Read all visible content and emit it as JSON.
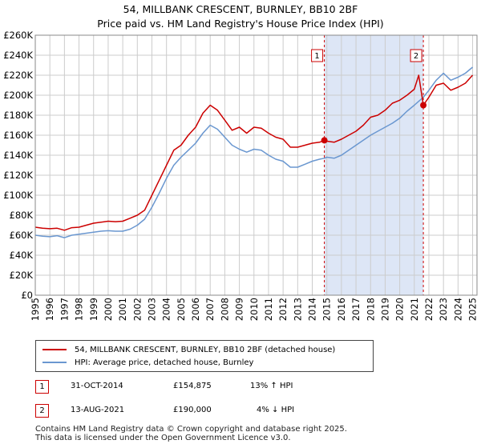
{
  "title": "54, MILLBANK CRESCENT, BURNLEY, BB10 2BF",
  "subtitle": "Price paid vs. HM Land Registry's House Price Index (HPI)",
  "colors": {
    "red": "#cc0000",
    "blue": "#6a97d0",
    "shade": "#dde6f6",
    "grid": "#cccccc"
  },
  "chart_data": {
    "type": "line",
    "title": "54, MILLBANK CRESCENT, BURNLEY, BB10 2BF",
    "subtitle": "Price paid vs. HM Land Registry's House Price Index (HPI)",
    "xlim": [
      1995,
      2025.3
    ],
    "ylim": [
      0,
      260000
    ],
    "ytick_labels": [
      "£0",
      "£20K",
      "£40K",
      "£60K",
      "£80K",
      "£100K",
      "£120K",
      "£140K",
      "£160K",
      "£180K",
      "£200K",
      "£220K",
      "£240K",
      "£260K"
    ],
    "xtick_labels": [
      "1995",
      "1996",
      "1997",
      "1998",
      "1999",
      "2000",
      "2001",
      "2002",
      "2003",
      "2004",
      "2005",
      "2006",
      "2007",
      "2008",
      "2009",
      "2010",
      "2011",
      "2012",
      "2013",
      "2014",
      "2015",
      "2016",
      "2017",
      "2018",
      "2019",
      "2020",
      "2021",
      "2022",
      "2023",
      "2024",
      "2025"
    ],
    "grid": true,
    "shaded_range": [
      2014.83,
      2021.62
    ],
    "series": [
      {
        "name": "54, MILLBANK CRESCENT, BURNLEY, BB10 2BF (detached house)",
        "color": "#cc0000",
        "points": [
          [
            1995,
            68000
          ],
          [
            1995.5,
            67000
          ],
          [
            1996,
            66500
          ],
          [
            1996.5,
            67000
          ],
          [
            1997,
            65000
          ],
          [
            1997.5,
            67500
          ],
          [
            1998,
            68000
          ],
          [
            1998.5,
            70000
          ],
          [
            1999,
            72000
          ],
          [
            1999.5,
            73000
          ],
          [
            2000,
            74000
          ],
          [
            2000.5,
            73500
          ],
          [
            2001,
            74000
          ],
          [
            2001.5,
            77000
          ],
          [
            2002,
            80000
          ],
          [
            2002.5,
            85000
          ],
          [
            2003,
            100000
          ],
          [
            2003.5,
            115000
          ],
          [
            2004,
            130000
          ],
          [
            2004.5,
            145000
          ],
          [
            2005,
            150000
          ],
          [
            2005.5,
            160000
          ],
          [
            2006,
            168000
          ],
          [
            2006.5,
            182000
          ],
          [
            2007,
            190000
          ],
          [
            2007.5,
            185000
          ],
          [
            2008,
            175000
          ],
          [
            2008.5,
            165000
          ],
          [
            2009,
            168000
          ],
          [
            2009.5,
            162000
          ],
          [
            2010,
            168000
          ],
          [
            2010.5,
            167000
          ],
          [
            2011,
            162000
          ],
          [
            2011.5,
            158000
          ],
          [
            2012,
            156000
          ],
          [
            2012.5,
            148000
          ],
          [
            2013,
            148000
          ],
          [
            2013.5,
            150000
          ],
          [
            2014,
            152000
          ],
          [
            2014.5,
            153000
          ],
          [
            2014.83,
            154875
          ],
          [
            2015,
            154000
          ],
          [
            2015.5,
            153000
          ],
          [
            2016,
            156000
          ],
          [
            2016.5,
            160000
          ],
          [
            2017,
            164000
          ],
          [
            2017.5,
            170000
          ],
          [
            2018,
            178000
          ],
          [
            2018.5,
            180000
          ],
          [
            2019,
            185000
          ],
          [
            2019.5,
            192000
          ],
          [
            2020,
            195000
          ],
          [
            2020.5,
            200000
          ],
          [
            2021,
            206000
          ],
          [
            2021.3,
            220000
          ],
          [
            2021.62,
            190000
          ],
          [
            2022,
            198000
          ],
          [
            2022.5,
            210000
          ],
          [
            2023,
            212000
          ],
          [
            2023.5,
            205000
          ],
          [
            2024,
            208000
          ],
          [
            2024.5,
            212000
          ],
          [
            2025,
            220000
          ]
        ]
      },
      {
        "name": "HPI: Average price, detached house, Burnley",
        "color": "#6a97d0",
        "points": [
          [
            1995,
            60000
          ],
          [
            1995.5,
            59000
          ],
          [
            1996,
            58500
          ],
          [
            1996.5,
            59500
          ],
          [
            1997,
            57500
          ],
          [
            1997.5,
            60000
          ],
          [
            1998,
            61000
          ],
          [
            1998.5,
            62000
          ],
          [
            1999,
            63000
          ],
          [
            1999.5,
            64000
          ],
          [
            2000,
            64500
          ],
          [
            2000.5,
            64000
          ],
          [
            2001,
            64000
          ],
          [
            2001.5,
            66000
          ],
          [
            2002,
            70000
          ],
          [
            2002.5,
            76000
          ],
          [
            2003,
            88000
          ],
          [
            2003.5,
            102000
          ],
          [
            2004,
            117000
          ],
          [
            2004.5,
            130000
          ],
          [
            2005,
            138000
          ],
          [
            2005.5,
            145000
          ],
          [
            2006,
            152000
          ],
          [
            2006.5,
            162000
          ],
          [
            2007,
            170000
          ],
          [
            2007.5,
            166000
          ],
          [
            2008,
            158000
          ],
          [
            2008.5,
            150000
          ],
          [
            2009,
            146000
          ],
          [
            2009.5,
            143000
          ],
          [
            2010,
            146000
          ],
          [
            2010.5,
            145000
          ],
          [
            2011,
            140000
          ],
          [
            2011.5,
            136000
          ],
          [
            2012,
            134000
          ],
          [
            2012.5,
            128000
          ],
          [
            2013,
            128000
          ],
          [
            2013.5,
            131000
          ],
          [
            2014,
            134000
          ],
          [
            2014.5,
            136000
          ],
          [
            2014.83,
            137000
          ],
          [
            2015,
            138000
          ],
          [
            2015.5,
            137000
          ],
          [
            2016,
            140000
          ],
          [
            2016.5,
            145000
          ],
          [
            2017,
            150000
          ],
          [
            2017.5,
            155000
          ],
          [
            2018,
            160000
          ],
          [
            2018.5,
            164000
          ],
          [
            2019,
            168000
          ],
          [
            2019.5,
            172000
          ],
          [
            2020,
            177000
          ],
          [
            2020.5,
            184000
          ],
          [
            2021,
            190000
          ],
          [
            2021.62,
            198000
          ],
          [
            2022,
            205000
          ],
          [
            2022.5,
            215000
          ],
          [
            2023,
            222000
          ],
          [
            2023.5,
            215000
          ],
          [
            2024,
            218000
          ],
          [
            2024.5,
            222000
          ],
          [
            2025,
            228000
          ]
        ]
      }
    ],
    "annotations": [
      {
        "label": "1",
        "x": 2014.83,
        "y": 154875
      },
      {
        "label": "2",
        "x": 2021.62,
        "y": 190000
      }
    ]
  },
  "legend": {
    "entries": [
      {
        "label": "54, MILLBANK CRESCENT, BURNLEY, BB10 2BF (detached house)",
        "color": "#cc0000"
      },
      {
        "label": "HPI: Average price, detached house, Burnley",
        "color": "#6a97d0"
      }
    ]
  },
  "transactions": [
    {
      "num": "1",
      "date": "31-OCT-2014",
      "price": "£154,875",
      "hpi": "13% ↑ HPI"
    },
    {
      "num": "2",
      "date": "13-AUG-2021",
      "price": "£190,000",
      "hpi": "4% ↓ HPI"
    }
  ],
  "footer": {
    "line1": "Contains HM Land Registry data © Crown copyright and database right 2025.",
    "line2": "This data is licensed under the Open Government Licence v3.0."
  }
}
